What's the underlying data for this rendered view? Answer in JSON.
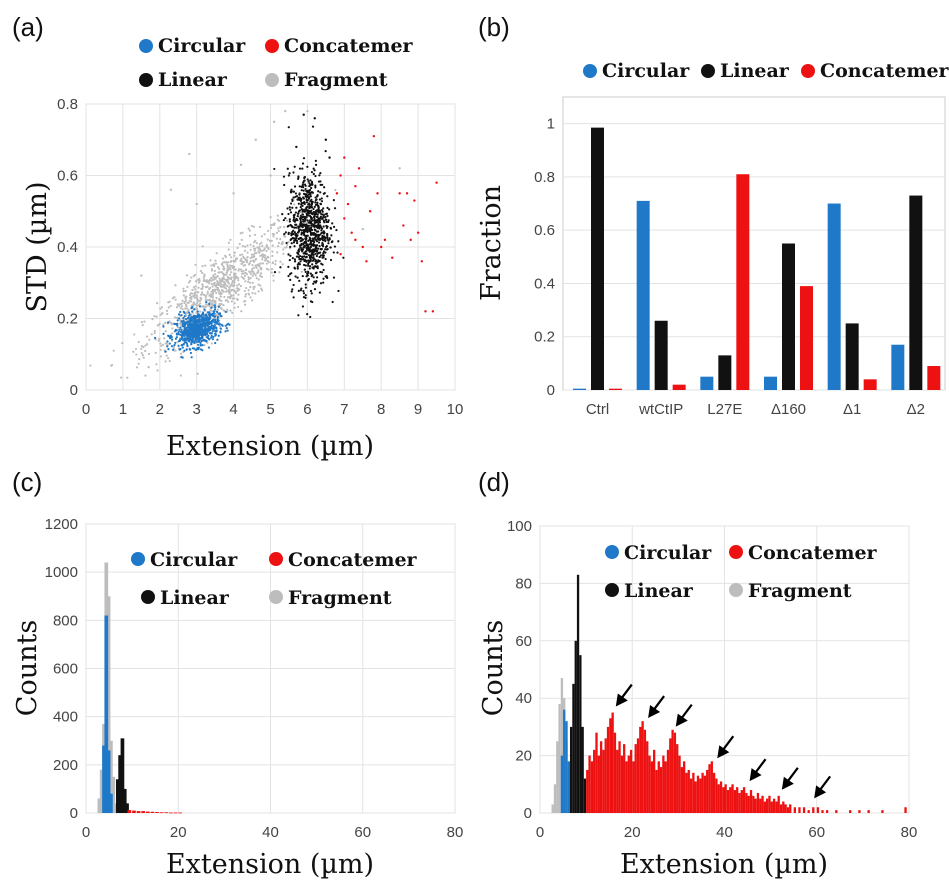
{
  "colors": {
    "circular": "#1f78c8",
    "linear": "#111111",
    "concatemer": "#ee1111",
    "fragment": "#bdbdbd"
  },
  "chart_data": [
    {
      "panel": "(a)",
      "type": "scatter",
      "xlabel": "Extension (µm)",
      "ylabel": "STD (µm)",
      "xlim": [
        0,
        10
      ],
      "ylim": [
        0,
        0.8
      ],
      "xticks": [
        "0",
        "1",
        "2",
        "3",
        "4",
        "5",
        "6",
        "7",
        "8",
        "9",
        "10"
      ],
      "yticks": [
        "0",
        "0.2",
        "0.4",
        "0.6",
        "0.8"
      ],
      "legend": [
        "Circular",
        "Concatemer",
        "Linear",
        "Fragment"
      ],
      "series": [
        {
          "name": "Fragment",
          "color": "fragment",
          "clusters": [
            {
              "cx": 3.6,
              "cy": 0.28,
              "sx": 1.0,
              "sy": 0.09,
              "n": 900,
              "corr": 0.85
            }
          ],
          "points": [
            [
              1.5,
              0.32
            ],
            [
              2.3,
              0.56
            ],
            [
              2.8,
              0.66
            ],
            [
              4.2,
              0.63
            ],
            [
              4.6,
              0.7
            ],
            [
              5.1,
              0.75
            ],
            [
              5.4,
              0.78
            ],
            [
              6.0,
              0.78
            ],
            [
              7.5,
              0.45
            ],
            [
              8.5,
              0.62
            ],
            [
              3.0,
              0.52
            ],
            [
              5.0,
              0.6
            ],
            [
              4.0,
              0.55
            ]
          ]
        },
        {
          "name": "Circular",
          "color": "circular",
          "clusters": [
            {
              "cx": 3.0,
              "cy": 0.17,
              "sx": 0.3,
              "sy": 0.025,
              "n": 700,
              "corr": 0.3
            }
          ]
        },
        {
          "name": "Linear",
          "color": "linear",
          "clusters": [
            {
              "cx": 6.05,
              "cy": 0.45,
              "sx": 0.28,
              "sy": 0.08,
              "n": 850,
              "corr": 0.0
            }
          ],
          "points": [
            [
              6.2,
              0.76
            ],
            [
              5.9,
              0.77
            ],
            [
              6.5,
              0.7
            ],
            [
              5.7,
              0.68
            ],
            [
              6.6,
              0.65
            ]
          ]
        },
        {
          "name": "Concatemer",
          "color": "concatemer",
          "points": [
            [
              6.8,
              0.55
            ],
            [
              6.9,
              0.6
            ],
            [
              7.0,
              0.48
            ],
            [
              7.1,
              0.52
            ],
            [
              7.2,
              0.44
            ],
            [
              7.3,
              0.57
            ],
            [
              7.4,
              0.62
            ],
            [
              7.5,
              0.4
            ],
            [
              7.6,
              0.36
            ],
            [
              7.7,
              0.5
            ],
            [
              7.8,
              0.71
            ],
            [
              7.9,
              0.55
            ],
            [
              8.0,
              0.4
            ],
            [
              8.1,
              0.42
            ],
            [
              8.3,
              0.37
            ],
            [
              8.5,
              0.55
            ],
            [
              8.6,
              0.46
            ],
            [
              8.7,
              0.55
            ],
            [
              8.8,
              0.42
            ],
            [
              8.9,
              0.53
            ],
            [
              9.0,
              0.44
            ],
            [
              9.1,
              0.36
            ],
            [
              9.2,
              0.22
            ],
            [
              9.5,
              0.58
            ],
            [
              9.4,
              0.22
            ],
            [
              7.3,
              0.42
            ],
            [
              6.9,
              0.38
            ],
            [
              7.0,
              0.65
            ]
          ]
        }
      ]
    },
    {
      "panel": "(b)",
      "type": "bar",
      "ylabel": "Fraction",
      "ylim": [
        0,
        1.1
      ],
      "yticks": [
        "0",
        "0.2",
        "0.4",
        "0.6",
        "0.8",
        "1"
      ],
      "categories": [
        "Ctrl",
        "wtCtIP",
        "L27E",
        "Δ160",
        "Δ1",
        "Δ2"
      ],
      "legend": [
        "Circular",
        "Linear",
        "Concatemer"
      ],
      "series": [
        {
          "name": "Circular",
          "color": "circular",
          "values": [
            0.005,
            0.71,
            0.05,
            0.05,
            0.7,
            0.17
          ]
        },
        {
          "name": "Linear",
          "color": "linear",
          "values": [
            0.985,
            0.26,
            0.13,
            0.55,
            0.25,
            0.73
          ]
        },
        {
          "name": "Concatemer",
          "color": "concatemer",
          "values": [
            0.005,
            0.02,
            0.81,
            0.39,
            0.04,
            0.09
          ]
        }
      ]
    },
    {
      "panel": "(c)",
      "type": "bar",
      "xlabel": "Extension (µm)",
      "ylabel": "Counts",
      "xlim": [
        0,
        80
      ],
      "ylim": [
        0,
        1200
      ],
      "xticks": [
        "0",
        "20",
        "40",
        "60",
        "80"
      ],
      "yticks": [
        "0",
        "200",
        "400",
        "600",
        "800",
        "1000",
        "1200"
      ],
      "legend": [
        "Circular",
        "Concatemer",
        "Linear",
        "Fragment"
      ],
      "bin_width": 0.5,
      "series": [
        {
          "name": "Fragment",
          "color": "fragment",
          "bins": [
            [
              2.5,
              60
            ],
            [
              3.0,
              180
            ],
            [
              3.5,
              370
            ],
            [
              4.0,
              1040
            ],
            [
              4.5,
              900
            ],
            [
              5.0,
              300
            ],
            [
              5.5,
              150
            ],
            [
              6.0,
              40
            ]
          ]
        },
        {
          "name": "Circular",
          "color": "circular",
          "bins": [
            [
              3.5,
              280
            ],
            [
              4.0,
              820
            ],
            [
              4.5,
              260
            ],
            [
              5.0,
              80
            ]
          ]
        },
        {
          "name": "Linear",
          "color": "linear",
          "bins": [
            [
              6.5,
              140
            ],
            [
              7.0,
              240
            ],
            [
              7.5,
              310
            ],
            [
              8.0,
              100
            ],
            [
              8.5,
              40
            ]
          ]
        },
        {
          "name": "Concatemer",
          "color": "concatemer",
          "bins": [
            [
              9.0,
              12
            ],
            [
              10.0,
              10
            ],
            [
              11.0,
              8
            ],
            [
              12.0,
              8
            ],
            [
              13.0,
              6
            ],
            [
              14.0,
              5
            ],
            [
              15.0,
              4
            ],
            [
              16.0,
              3
            ],
            [
              17.0,
              3
            ],
            [
              18.0,
              2
            ],
            [
              19.0,
              2
            ],
            [
              20.0,
              2
            ]
          ]
        }
      ]
    },
    {
      "panel": "(d)",
      "type": "bar",
      "xlabel": "Extension (µm)",
      "ylabel": "Counts",
      "xlim": [
        0,
        80
      ],
      "ylim": [
        0,
        100
      ],
      "xticks": [
        "0",
        "20",
        "40",
        "60",
        "80"
      ],
      "yticks": [
        "0",
        "20",
        "40",
        "60",
        "80",
        "100"
      ],
      "legend": [
        "Circular",
        "Concatemer",
        "Linear",
        "Fragment"
      ],
      "bin_width": 0.5,
      "arrows_at": [
        [
          16,
          35
        ],
        [
          23,
          31
        ],
        [
          29,
          28
        ],
        [
          38,
          17
        ],
        [
          45,
          9
        ],
        [
          52,
          6
        ],
        [
          59,
          3
        ]
      ],
      "series": [
        {
          "name": "Fragment",
          "color": "fragment",
          "bins": [
            [
              2.5,
              3
            ],
            [
              3.0,
              10
            ],
            [
              3.5,
              25
            ],
            [
              4.0,
              38
            ],
            [
              4.5,
              47
            ],
            [
              5.0,
              40
            ],
            [
              5.5,
              25
            ],
            [
              6.0,
              15
            ]
          ]
        },
        {
          "name": "Circular",
          "color": "circular",
          "bins": [
            [
              4.5,
              20
            ],
            [
              5.0,
              36
            ],
            [
              5.5,
              32
            ],
            [
              6.0,
              18
            ]
          ]
        },
        {
          "name": "Linear",
          "color": "linear",
          "bins": [
            [
              6.5,
              30
            ],
            [
              7.0,
              45
            ],
            [
              7.5,
              60
            ],
            [
              8.0,
              83
            ],
            [
              8.5,
              55
            ],
            [
              9.0,
              30
            ],
            [
              9.5,
              12
            ]
          ]
        },
        {
          "name": "Concatemer",
          "color": "concatemer",
          "bins": [
            [
              10.0,
              15
            ],
            [
              10.5,
              20
            ],
            [
              11.0,
              18
            ],
            [
              11.5,
              22
            ],
            [
              12.0,
              28
            ],
            [
              12.5,
              20
            ],
            [
              13.0,
              25
            ],
            [
              13.5,
              22
            ],
            [
              14.0,
              26
            ],
            [
              14.5,
              30
            ],
            [
              15.0,
              33
            ],
            [
              15.5,
              35
            ],
            [
              16.0,
              28
            ],
            [
              16.5,
              22
            ],
            [
              17.0,
              25
            ],
            [
              17.5,
              20
            ],
            [
              18.0,
              24
            ],
            [
              18.5,
              18
            ],
            [
              19.0,
              20
            ],
            [
              19.5,
              22
            ],
            [
              20.0,
              18
            ],
            [
              20.5,
              24
            ],
            [
              21.0,
              26
            ],
            [
              21.5,
              30
            ],
            [
              22.0,
              32
            ],
            [
              22.5,
              29
            ],
            [
              23.0,
              25
            ],
            [
              23.5,
              20
            ],
            [
              24.0,
              18
            ],
            [
              24.5,
              22
            ],
            [
              25.0,
              15
            ],
            [
              25.5,
              18
            ],
            [
              26.0,
              16
            ],
            [
              26.5,
              20
            ],
            [
              27.0,
              18
            ],
            [
              27.5,
              22
            ],
            [
              28.0,
              26
            ],
            [
              28.5,
              29
            ],
            [
              29.0,
              28
            ],
            [
              29.5,
              24
            ],
            [
              30.0,
              20
            ],
            [
              30.5,
              16
            ],
            [
              31.0,
              18
            ],
            [
              31.5,
              14
            ],
            [
              32.0,
              15
            ],
            [
              32.5,
              12
            ],
            [
              33.0,
              14
            ],
            [
              33.5,
              11
            ],
            [
              34.0,
              13
            ],
            [
              34.5,
              12
            ],
            [
              35.0,
              14
            ],
            [
              35.5,
              13
            ],
            [
              36.0,
              15
            ],
            [
              36.5,
              17
            ],
            [
              37.0,
              18
            ],
            [
              37.5,
              14
            ],
            [
              38.0,
              12
            ],
            [
              38.5,
              10
            ],
            [
              39.0,
              11
            ],
            [
              39.5,
              9
            ],
            [
              40.0,
              10
            ],
            [
              40.5,
              8
            ],
            [
              41.0,
              9
            ],
            [
              41.5,
              10
            ],
            [
              42.0,
              8
            ],
            [
              42.5,
              9
            ],
            [
              43.0,
              7
            ],
            [
              43.5,
              8
            ],
            [
              44.0,
              9
            ],
            [
              44.5,
              7
            ],
            [
              45.0,
              6
            ],
            [
              45.5,
              8
            ],
            [
              46.0,
              6
            ],
            [
              46.5,
              5
            ],
            [
              47.0,
              7
            ],
            [
              47.5,
              5
            ],
            [
              48.0,
              6
            ],
            [
              48.5,
              4
            ],
            [
              49.0,
              5
            ],
            [
              49.5,
              6
            ],
            [
              50.0,
              4
            ],
            [
              50.5,
              5
            ],
            [
              51.0,
              4
            ],
            [
              51.5,
              6
            ],
            [
              52.0,
              3
            ],
            [
              52.5,
              4
            ],
            [
              53.0,
              3
            ],
            [
              53.5,
              2
            ],
            [
              54.0,
              3
            ],
            [
              55.0,
              2
            ],
            [
              56.0,
              2
            ],
            [
              57.0,
              2
            ],
            [
              58.0,
              1
            ],
            [
              59.0,
              2
            ],
            [
              60.0,
              2
            ],
            [
              61.0,
              1
            ],
            [
              62.0,
              1
            ],
            [
              64.0,
              1
            ],
            [
              67.0,
              1
            ],
            [
              69.0,
              1
            ],
            [
              71.0,
              1
            ],
            [
              74.0,
              1
            ],
            [
              79.0,
              2
            ]
          ]
        }
      ]
    }
  ]
}
